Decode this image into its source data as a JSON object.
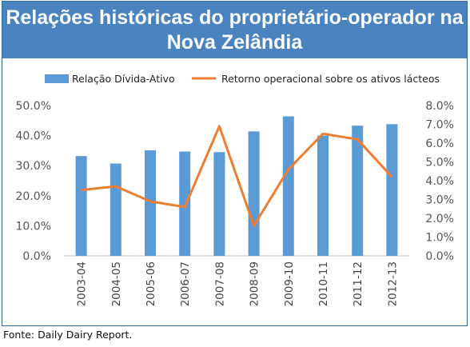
{
  "title_line1": "Relações históricas do proprietário-operador na",
  "title_line2": "Nova Zelândia",
  "source": "Fonte: Daily Dairy Report.",
  "chart_data": {
    "type": "bar",
    "categories": [
      "2003-04",
      "2004-05",
      "2005-06",
      "2006-07",
      "2007-08",
      "2008-09",
      "2009-10",
      "2010-11",
      "2011-12",
      "2012-13"
    ],
    "series": [
      {
        "name": "Relação Dívida-Ativo",
        "type": "bar",
        "axis": "left",
        "color": "#5b9bd5",
        "values": [
          33.2,
          30.7,
          35.1,
          34.7,
          34.5,
          41.4,
          46.4,
          40.0,
          43.3,
          43.8
        ]
      },
      {
        "name": "Retorno operacional sobre os ativos lácteos",
        "type": "line",
        "axis": "right",
        "color": "#ed7d31",
        "values": [
          3.5,
          3.7,
          2.9,
          2.6,
          6.9,
          1.6,
          4.6,
          6.5,
          6.2,
          4.2
        ]
      }
    ],
    "left_axis": {
      "min": 0,
      "max": 50,
      "ticks": [
        "0.0%",
        "10.0%",
        "20.0%",
        "30.0%",
        "40.0%",
        "50.0%"
      ]
    },
    "right_axis": {
      "min": 0,
      "max": 8,
      "ticks": [
        "0.0%",
        "1.0%",
        "2.0%",
        "3.0%",
        "4.0%",
        "5.0%",
        "6.0%",
        "7.0%",
        "8.0%"
      ]
    },
    "legend_position": "top",
    "grid": false
  }
}
